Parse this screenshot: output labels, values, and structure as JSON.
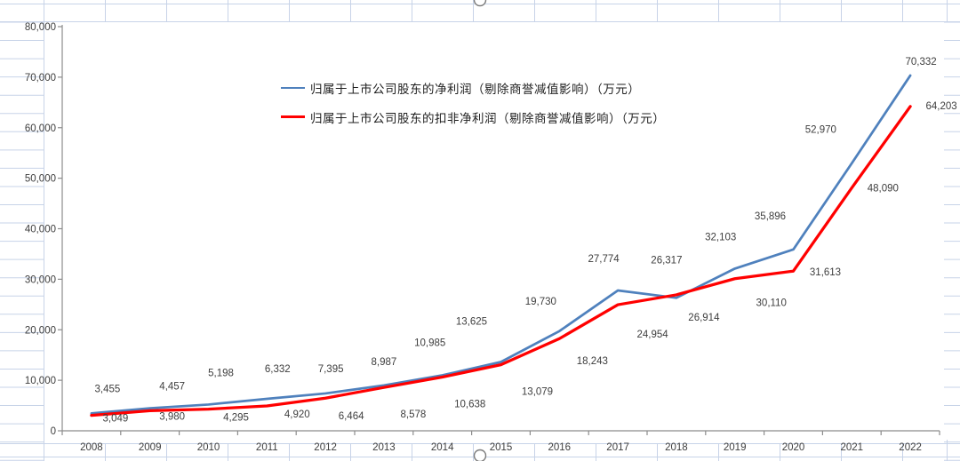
{
  "app": {
    "context": "excel-embedded-chart",
    "chart_selected": true
  },
  "colors": {
    "series_blue": "#4f81bd",
    "series_red": "#ff0000",
    "axis_line": "#8c8c8c",
    "tick_label_text": "#3d3d3d",
    "data_label_text": "#3d3d3d",
    "legend_text": "#1f1f1f",
    "sheet_gridline": "#c7d3e8",
    "plot_background": "#ffffff",
    "selection_handle_stroke": "#7b7b7b"
  },
  "chart_data": {
    "type": "line",
    "categories": [
      "2008",
      "2009",
      "2010",
      "2011",
      "2012",
      "2013",
      "2014",
      "2015",
      "2016",
      "2017",
      "2018",
      "2019",
      "2020",
      "2021",
      "2022"
    ],
    "series": [
      {
        "name": "归属于上市公司股东的净利润（剔除商誉减值影响）（万元）",
        "color": "#4f81bd",
        "values": [
          3455,
          4457,
          5198,
          6332,
          7395,
          8987,
          10985,
          13625,
          19730,
          27774,
          26317,
          32103,
          35896,
          52970,
          70332
        ]
      },
      {
        "name": "归属于上市公司股东的扣非净利润（剔除商誉减值影响）（万元）",
        "color": "#ff0000",
        "values": [
          3049,
          3980,
          4295,
          4920,
          6464,
          8578,
          10638,
          13079,
          18243,
          24954,
          26914,
          30110,
          31613,
          48090,
          64203
        ]
      }
    ],
    "ylim": [
      0,
      80000
    ],
    "ytick_interval": 10000,
    "y_tick_labels": [
      "0",
      "10,000",
      "20,000",
      "30,000",
      "40,000",
      "50,000",
      "60,000",
      "70,000",
      "80,000"
    ],
    "xlabel": "",
    "ylabel": "",
    "title": "",
    "plot_gridlines": "off",
    "data_labels": "on",
    "legend_position": "inside-plot-upper-left"
  }
}
